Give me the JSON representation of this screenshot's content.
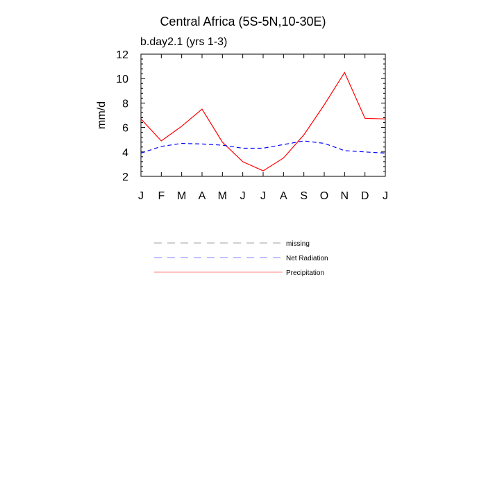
{
  "chart_data": {
    "type": "line",
    "title": "Central Africa (5S-5N,10-30E)",
    "subtitle": "b.day2.1 (yrs 1-3)",
    "ylabel": "mm/d",
    "xlabel": "",
    "categories": [
      "J",
      "F",
      "M",
      "A",
      "M",
      "J",
      "J",
      "A",
      "S",
      "O",
      "N",
      "D",
      "J"
    ],
    "ylim": [
      2,
      12
    ],
    "yticks": [
      2,
      4,
      6,
      8,
      10,
      12
    ],
    "grid": false,
    "legend_position": "below",
    "series": [
      {
        "name": "Precipitation",
        "color": "#ff0000",
        "dash": "solid",
        "values": [
          6.7,
          4.9,
          6.1,
          7.5,
          4.8,
          3.2,
          2.45,
          3.5,
          5.4,
          7.85,
          10.5,
          6.75,
          6.7
        ]
      },
      {
        "name": "Net Radiation",
        "color": "#0000ff",
        "dash": "dashed",
        "values": [
          3.9,
          4.45,
          4.7,
          4.65,
          4.55,
          4.3,
          4.3,
          4.6,
          4.9,
          4.7,
          4.1,
          4.0,
          3.9
        ]
      }
    ],
    "legend": [
      {
        "label": "missing",
        "color": "#a0a0a0",
        "dash": "dashed"
      },
      {
        "label": "Net Radiation",
        "color": "#8080ff",
        "dash": "dashed"
      },
      {
        "label": "Precipitation",
        "color": "#ff8080",
        "dash": "solid"
      }
    ]
  }
}
